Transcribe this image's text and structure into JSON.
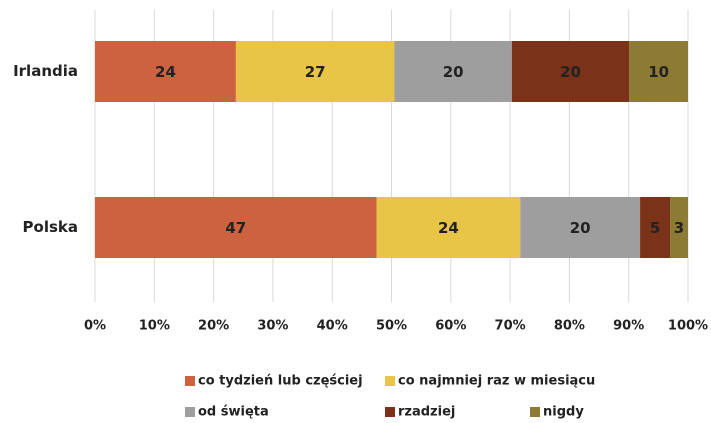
{
  "chart_data": {
    "type": "bar",
    "orientation": "horizontal",
    "stacking": "percent",
    "categories": [
      "Irlandia",
      "Polska"
    ],
    "series": [
      {
        "name": "co tydzień lub częściej",
        "color": "#cc6240",
        "values": [
          24,
          47
        ]
      },
      {
        "name": "co najmniej raz w miesiącu",
        "color": "#e8c547",
        "values": [
          27,
          24
        ]
      },
      {
        "name": "od święta",
        "color": "#9e9e9e",
        "values": [
          20,
          20
        ]
      },
      {
        "name": "rzadziej",
        "color": "#7a3219",
        "values": [
          20,
          5
        ]
      },
      {
        "name": "nigdy",
        "color": "#8c7a35",
        "values": [
          10,
          3
        ]
      }
    ],
    "xlim": [
      0,
      100
    ],
    "xticks": [
      {
        "value": 0,
        "label": "0%"
      },
      {
        "value": 10,
        "label": "10%"
      },
      {
        "value": 20,
        "label": "20%"
      },
      {
        "value": 30,
        "label": "30%"
      },
      {
        "value": 40,
        "label": "40%"
      },
      {
        "value": 50,
        "label": "50%"
      },
      {
        "value": 60,
        "label": "60%"
      },
      {
        "value": 70,
        "label": "70%"
      },
      {
        "value": 80,
        "label": "80%"
      },
      {
        "value": 90,
        "label": "90%"
      },
      {
        "value": 100,
        "label": "100%"
      }
    ],
    "grid": true,
    "legend": "bottom"
  }
}
